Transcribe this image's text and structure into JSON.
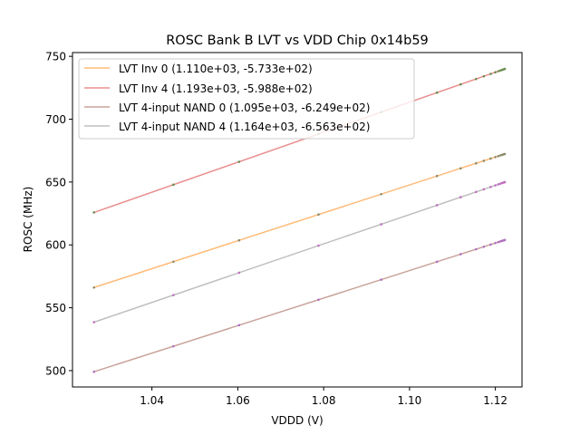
{
  "chart_data": {
    "type": "line",
    "title": "ROSC Bank B LVT vs VDD Chip 0x14b59",
    "xlabel": "VDDD (V)",
    "ylabel": "ROSC (MHz)",
    "xlim": [
      1.0215,
      1.1262
    ],
    "ylim": [
      487,
      753
    ],
    "x_ticks": [
      1.04,
      1.06,
      1.08,
      1.1,
      1.12
    ],
    "x_tick_labels": [
      "1.04",
      "1.06",
      "1.08",
      "1.10",
      "1.12"
    ],
    "y_ticks": [
      500,
      550,
      600,
      650,
      700,
      750
    ],
    "y_tick_labels": [
      "500",
      "550",
      "600",
      "650",
      "700",
      "750"
    ],
    "grid": false,
    "legend_position": "upper-left",
    "colors": {
      "inv0": "#ffbb78",
      "inv4": "#e8908f",
      "nand0": "#c8a39a",
      "nand4": "#bfbfbf",
      "frame": "#000000"
    },
    "series": [
      {
        "name": "LVT Inv 0 (1.110e+03, -5.733e+02)",
        "slope": 1110,
        "intercept": -573.3,
        "x_range": [
          1.0265,
          1.1222
        ],
        "color": "#ffbb78",
        "marker_color": "#8c8c6a"
      },
      {
        "name": "LVT Inv 4 (1.193e+03, -5.988e+02)",
        "slope": 1193,
        "intercept": -598.8,
        "x_range": [
          1.0265,
          1.1222
        ],
        "color": "#e8908f",
        "marker_color": "#6a8c4f"
      },
      {
        "name": "LVT 4-input NAND 0 (1.095e+03, -6.249e+02)",
        "slope": 1095,
        "intercept": -624.9,
        "x_range": [
          1.0265,
          1.1222
        ],
        "color": "#c8a39a",
        "marker_color": "#b070c0"
      },
      {
        "name": "LVT 4-input NAND 4 (1.164e+03, -6.563e+02)",
        "slope": 1164,
        "intercept": -656.3,
        "x_range": [
          1.0265,
          1.1222
        ],
        "color": "#bfbfbf",
        "marker_color": "#c070c0"
      }
    ],
    "sample_x": [
      1.0265,
      1.045,
      1.0603,
      1.0788,
      1.0934,
      1.1064,
      1.1119,
      1.1155,
      1.1173,
      1.1189,
      1.12,
      1.1207,
      1.1212,
      1.1216,
      1.1219,
      1.1222
    ]
  }
}
